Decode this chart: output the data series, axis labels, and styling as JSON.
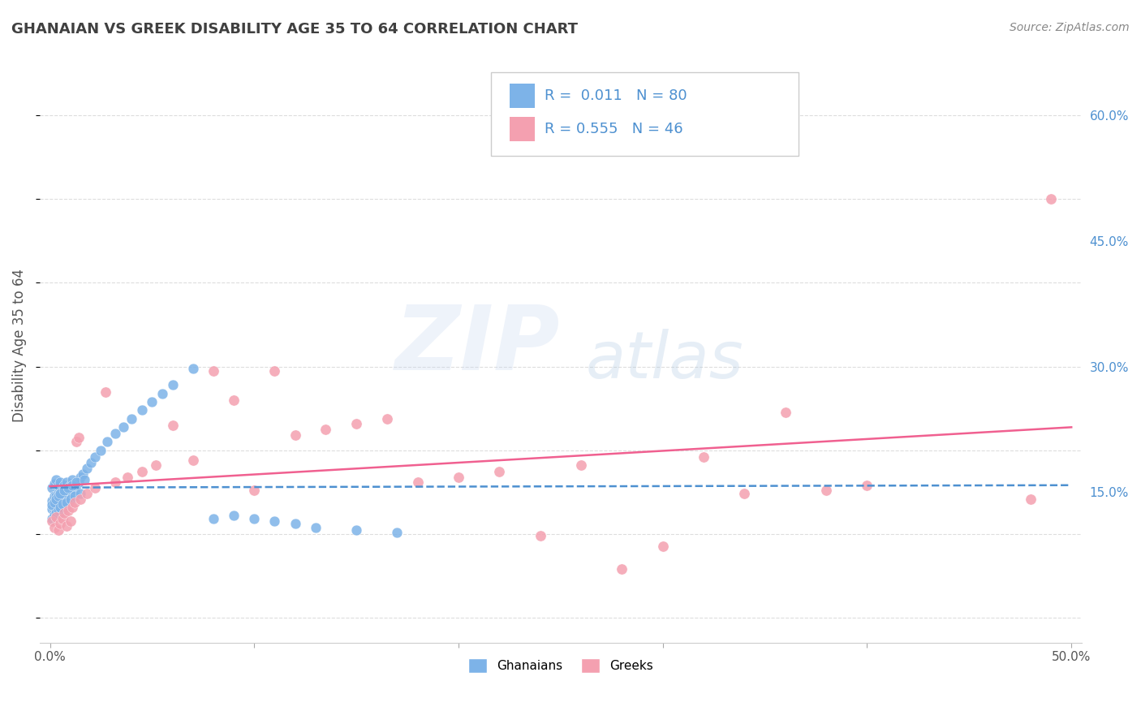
{
  "title": "GHANAIAN VS GREEK DISABILITY AGE 35 TO 64 CORRELATION CHART",
  "source": "Source: ZipAtlas.com",
  "ylabel": "Disability Age 35 to 64",
  "background_color": "#ffffff",
  "grid_color": "#dddddd",
  "ghanaian_color": "#7db3e8",
  "greek_color": "#f4a0b0",
  "ghanaian_line_color": "#4d90d0",
  "greek_line_color": "#f06090",
  "title_color": "#404040",
  "source_color": "#888888",
  "axis_label_color": "#4d90d0",
  "ghanaian_x": [
    0.001,
    0.001,
    0.001,
    0.002,
    0.002,
    0.002,
    0.002,
    0.003,
    0.003,
    0.003,
    0.003,
    0.004,
    0.004,
    0.004,
    0.004,
    0.005,
    0.005,
    0.005,
    0.005,
    0.006,
    0.006,
    0.006,
    0.007,
    0.007,
    0.007,
    0.008,
    0.008,
    0.008,
    0.009,
    0.009,
    0.01,
    0.01,
    0.011,
    0.011,
    0.012,
    0.013,
    0.014,
    0.015,
    0.016,
    0.018,
    0.02,
    0.022,
    0.025,
    0.028,
    0.032,
    0.036,
    0.04,
    0.045,
    0.05,
    0.055,
    0.06,
    0.07,
    0.08,
    0.09,
    0.1,
    0.11,
    0.12,
    0.13,
    0.15,
    0.17,
    0.001,
    0.001,
    0.002,
    0.002,
    0.003,
    0.003,
    0.004,
    0.004,
    0.005,
    0.005,
    0.006,
    0.007,
    0.008,
    0.009,
    0.01,
    0.011,
    0.012,
    0.013,
    0.015,
    0.017
  ],
  "ghanaian_y": [
    0.13,
    0.14,
    0.155,
    0.125,
    0.135,
    0.145,
    0.16,
    0.12,
    0.13,
    0.145,
    0.165,
    0.128,
    0.138,
    0.148,
    0.158,
    0.125,
    0.135,
    0.148,
    0.162,
    0.13,
    0.142,
    0.155,
    0.132,
    0.144,
    0.158,
    0.135,
    0.148,
    0.162,
    0.138,
    0.152,
    0.142,
    0.158,
    0.148,
    0.165,
    0.152,
    0.158,
    0.162,
    0.168,
    0.172,
    0.178,
    0.185,
    0.192,
    0.2,
    0.21,
    0.22,
    0.228,
    0.238,
    0.248,
    0.258,
    0.268,
    0.278,
    0.298,
    0.118,
    0.122,
    0.118,
    0.115,
    0.112,
    0.108,
    0.105,
    0.102,
    0.118,
    0.135,
    0.122,
    0.138,
    0.125,
    0.142,
    0.128,
    0.145,
    0.132,
    0.148,
    0.136,
    0.152,
    0.138,
    0.155,
    0.142,
    0.158,
    0.145,
    0.162,
    0.148,
    0.165
  ],
  "greek_x": [
    0.001,
    0.002,
    0.003,
    0.004,
    0.005,
    0.006,
    0.007,
    0.008,
    0.009,
    0.01,
    0.011,
    0.012,
    0.013,
    0.014,
    0.015,
    0.018,
    0.022,
    0.027,
    0.032,
    0.038,
    0.045,
    0.052,
    0.06,
    0.07,
    0.08,
    0.09,
    0.1,
    0.11,
    0.12,
    0.135,
    0.15,
    0.165,
    0.18,
    0.2,
    0.22,
    0.24,
    0.26,
    0.28,
    0.3,
    0.32,
    0.34,
    0.36,
    0.38,
    0.4,
    0.48,
    0.49
  ],
  "greek_y": [
    0.115,
    0.108,
    0.12,
    0.105,
    0.112,
    0.118,
    0.125,
    0.11,
    0.128,
    0.115,
    0.132,
    0.138,
    0.21,
    0.215,
    0.142,
    0.148,
    0.155,
    0.27,
    0.162,
    0.168,
    0.175,
    0.182,
    0.23,
    0.188,
    0.295,
    0.26,
    0.152,
    0.295,
    0.218,
    0.225,
    0.232,
    0.238,
    0.162,
    0.168,
    0.175,
    0.098,
    0.182,
    0.058,
    0.085,
    0.192,
    0.148,
    0.245,
    0.152,
    0.158,
    0.142,
    0.5
  ],
  "xlim": [
    -0.005,
    0.505
  ],
  "ylim": [
    -0.03,
    0.68
  ],
  "xtick_positions": [
    0.0,
    0.1,
    0.2,
    0.3,
    0.4,
    0.5
  ],
  "xtick_labels": [
    "0.0%",
    "",
    "",
    "",
    "",
    "50.0%"
  ],
  "ytick_positions": [
    0.15,
    0.3,
    0.45,
    0.6
  ],
  "ytick_labels": [
    "15.0%",
    "30.0%",
    "45.0%",
    "60.0%"
  ]
}
